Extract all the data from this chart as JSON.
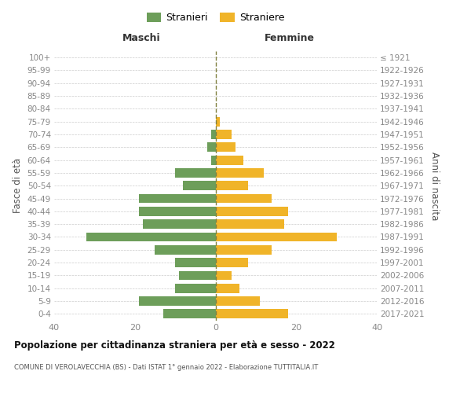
{
  "age_groups": [
    "0-4",
    "5-9",
    "10-14",
    "15-19",
    "20-24",
    "25-29",
    "30-34",
    "35-39",
    "40-44",
    "45-49",
    "50-54",
    "55-59",
    "60-64",
    "65-69",
    "70-74",
    "75-79",
    "80-84",
    "85-89",
    "90-94",
    "95-99",
    "100+"
  ],
  "birth_years": [
    "2017-2021",
    "2012-2016",
    "2007-2011",
    "2002-2006",
    "1997-2001",
    "1992-1996",
    "1987-1991",
    "1982-1986",
    "1977-1981",
    "1972-1976",
    "1967-1971",
    "1962-1966",
    "1957-1961",
    "1952-1956",
    "1947-1951",
    "1942-1946",
    "1937-1941",
    "1932-1936",
    "1927-1931",
    "1922-1926",
    "≤ 1921"
  ],
  "males": [
    13,
    19,
    10,
    9,
    10,
    15,
    32,
    18,
    19,
    19,
    8,
    10,
    1,
    2,
    1,
    0,
    0,
    0,
    0,
    0,
    0
  ],
  "females": [
    18,
    11,
    6,
    4,
    8,
    14,
    30,
    17,
    18,
    14,
    8,
    12,
    7,
    5,
    4,
    1,
    0,
    0,
    0,
    0,
    0
  ],
  "male_color": "#6d9e5a",
  "female_color": "#f0b429",
  "dashed_line_color": "#808040",
  "title": "Popolazione per cittadinanza straniera per età e sesso - 2022",
  "subtitle": "COMUNE DI VEROLAVECCHIA (BS) - Dati ISTAT 1° gennaio 2022 - Elaborazione TUTTITALIA.IT",
  "left_header": "Maschi",
  "right_header": "Femmine",
  "ylabel_left": "Fasce di età",
  "ylabel_right": "Anni di nascita",
  "legend_male": "Stranieri",
  "legend_female": "Straniere",
  "xlim": 40,
  "bar_height": 0.72,
  "background_color": "#ffffff",
  "grid_color": "#cccccc",
  "tick_color": "#888888",
  "label_color": "#555555",
  "title_color": "#111111",
  "subtitle_color": "#555555"
}
